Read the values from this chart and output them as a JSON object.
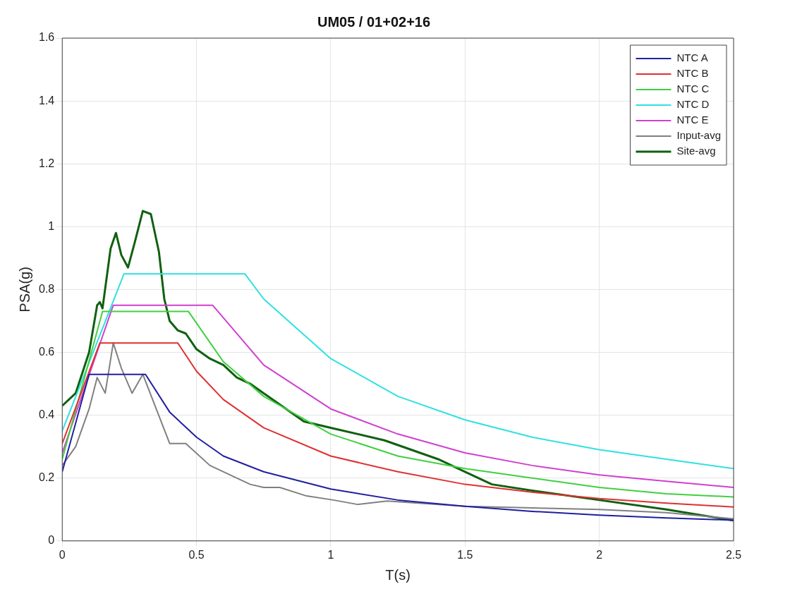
{
  "chart_data": {
    "type": "line",
    "title": "UM05 / 01+02+16",
    "xlabel": "T(s)",
    "ylabel": "PSA(g)",
    "xlim": [
      0,
      2.5
    ],
    "xticks": [
      0,
      0.5,
      1,
      1.5,
      2,
      2.5
    ],
    "ylim": [
      0,
      1.6
    ],
    "yticks": [
      0,
      0.2,
      0.4,
      0.6,
      0.8,
      1,
      1.2,
      1.4,
      1.6
    ],
    "grid": true,
    "legend": "top right",
    "marker": "none",
    "line_style": "solid",
    "series": [
      {
        "name": "NTC A",
        "color": "#1f1fa0",
        "x": [
          0,
          0.1,
          0.31,
          0.4,
          0.5,
          0.6,
          0.75,
          1,
          1.25,
          1.5,
          1.75,
          2,
          2.25,
          2.5
        ],
        "values": [
          0.22,
          0.53,
          0.53,
          0.41,
          0.33,
          0.27,
          0.22,
          0.165,
          0.13,
          0.11,
          0.094,
          0.082,
          0.073,
          0.066
        ]
      },
      {
        "name": "NTC B",
        "color": "#e03030",
        "x": [
          0,
          0.14,
          0.43,
          0.5,
          0.6,
          0.75,
          1,
          1.25,
          1.5,
          1.75,
          2,
          2.25,
          2.5
        ],
        "values": [
          0.31,
          0.63,
          0.63,
          0.54,
          0.45,
          0.36,
          0.27,
          0.22,
          0.18,
          0.155,
          0.135,
          0.12,
          0.108
        ]
      },
      {
        "name": "NTC C",
        "color": "#40d040",
        "x": [
          0,
          0.15,
          0.47,
          0.6,
          0.75,
          1,
          1.25,
          1.5,
          1.75,
          2,
          2.25,
          2.5
        ],
        "values": [
          0.26,
          0.73,
          0.73,
          0.57,
          0.46,
          0.34,
          0.27,
          0.23,
          0.2,
          0.17,
          0.15,
          0.14
        ]
      },
      {
        "name": "NTC D",
        "color": "#30e0e0",
        "x": [
          0,
          0.23,
          0.68,
          0.75,
          1,
          1.25,
          1.5,
          1.75,
          2,
          2.25,
          2.5
        ],
        "values": [
          0.35,
          0.85,
          0.85,
          0.77,
          0.58,
          0.46,
          0.385,
          0.33,
          0.29,
          0.26,
          0.23
        ]
      },
      {
        "name": "NTC E",
        "color": "#d040d0",
        "x": [
          0,
          0.19,
          0.56,
          0.75,
          1,
          1.25,
          1.5,
          1.75,
          2,
          2.25,
          2.5
        ],
        "values": [
          0.28,
          0.75,
          0.75,
          0.56,
          0.42,
          0.34,
          0.28,
          0.24,
          0.21,
          0.19,
          0.17
        ]
      },
      {
        "name": "Input-avg",
        "color": "#808080",
        "x": [
          0,
          0.05,
          0.1,
          0.13,
          0.16,
          0.19,
          0.22,
          0.26,
          0.3,
          0.35,
          0.4,
          0.46,
          0.55,
          0.7,
          0.75,
          0.81,
          0.91,
          1.01,
          1.1,
          1.21,
          1.5,
          1.75,
          2,
          2.25,
          2.5
        ],
        "values": [
          0.24,
          0.3,
          0.42,
          0.52,
          0.47,
          0.63,
          0.55,
          0.47,
          0.53,
          0.42,
          0.31,
          0.31,
          0.24,
          0.18,
          0.17,
          0.17,
          0.143,
          0.13,
          0.116,
          0.127,
          0.11,
          0.105,
          0.1,
          0.09,
          0.07
        ]
      },
      {
        "name": "Site-avg",
        "color": "#106010",
        "x": [
          0,
          0.05,
          0.1,
          0.13,
          0.14,
          0.15,
          0.18,
          0.2,
          0.22,
          0.245,
          0.27,
          0.3,
          0.33,
          0.36,
          0.38,
          0.4,
          0.43,
          0.46,
          0.5,
          0.55,
          0.6,
          0.65,
          0.7,
          0.75,
          0.8,
          0.9,
          1,
          1.2,
          1.4,
          1.5,
          1.6,
          1.75,
          2,
          2.25,
          2.5
        ],
        "values": [
          0.43,
          0.47,
          0.6,
          0.75,
          0.76,
          0.74,
          0.93,
          0.98,
          0.91,
          0.87,
          0.95,
          1.05,
          1.04,
          0.92,
          0.77,
          0.7,
          0.67,
          0.66,
          0.61,
          0.58,
          0.56,
          0.52,
          0.5,
          0.47,
          0.44,
          0.38,
          0.36,
          0.32,
          0.26,
          0.22,
          0.18,
          0.16,
          0.13,
          0.1,
          0.065
        ]
      }
    ]
  }
}
